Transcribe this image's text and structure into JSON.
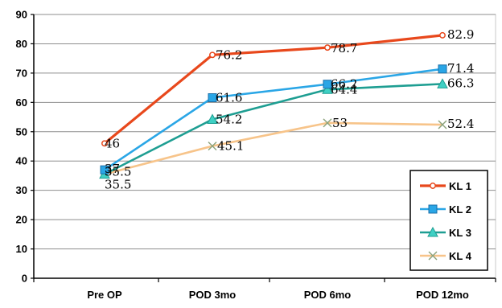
{
  "chart_data": {
    "type": "line",
    "categories": [
      "Pre OP",
      "POD 3mo",
      "POD 6mo",
      "POD 12mo"
    ],
    "ylim": [
      0,
      90
    ],
    "yticks": [
      "0",
      "10",
      "20",
      "30",
      "40",
      "50",
      "60",
      "70",
      "80",
      "90"
    ],
    "grid": true,
    "legend_position": "bottom-right",
    "series": [
      {
        "name": "KL 1",
        "values": [
          46,
          76.2,
          78.7,
          82.9
        ],
        "labels": [
          "46",
          "76.2",
          "78.7",
          "82.9"
        ],
        "color": "#e8481c",
        "marker": "circle"
      },
      {
        "name": "KL 2",
        "values": [
          37,
          61.6,
          66.2,
          71.4
        ],
        "labels": [
          "37",
          "61.6",
          "66.2",
          "71.4"
        ],
        "color": "#2aa6e6",
        "marker": "square"
      },
      {
        "name": "KL 3",
        "values": [
          35.5,
          54.2,
          64.4,
          66.3
        ],
        "labels": [
          "35.5",
          "54.2",
          "64.4",
          "66.3"
        ],
        "color": "#1e9e92",
        "marker": "triangle"
      },
      {
        "name": "KL 4",
        "values": [
          35.5,
          45.1,
          53,
          52.4
        ],
        "labels": [
          "35.5",
          "45.1",
          "53",
          "52.4"
        ],
        "color": "#f7c48a",
        "marker": "x"
      }
    ]
  }
}
